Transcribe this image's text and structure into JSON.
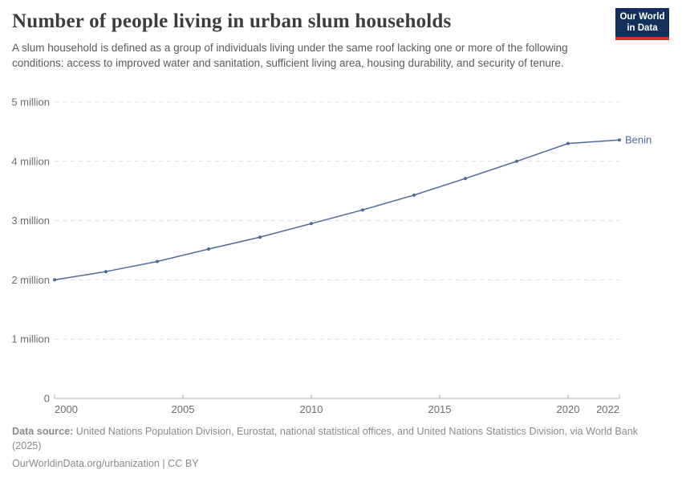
{
  "header": {
    "title": "Number of people living in urban slum households",
    "subtitle": "A slum household is defined as a group of individuals living under the same roof lacking one or more of the following conditions: access to improved water and sanitation, sufficient living area, housing durability, and security of tenure.",
    "logo": {
      "line1": "Our World",
      "line2": "in Data",
      "bg_color": "#12305a",
      "accent_color": "#d8352a"
    }
  },
  "chart_data": {
    "type": "line",
    "title": "Number of people living in urban slum households",
    "unit": "people (millions)",
    "xlim": [
      2000,
      2022
    ],
    "ylim": [
      0,
      5
    ],
    "grid": true,
    "x_ticks": [
      2000,
      2005,
      2010,
      2015,
      2020,
      2022
    ],
    "y_ticks": [
      {
        "value": 0,
        "label": "0"
      },
      {
        "value": 1,
        "label": "1 million"
      },
      {
        "value": 2,
        "label": "2 million"
      },
      {
        "value": 3,
        "label": "3 million"
      },
      {
        "value": 4,
        "label": "4 million"
      },
      {
        "value": 5,
        "label": "5 million"
      }
    ],
    "series": [
      {
        "name": "Benin",
        "color": "#4C6A9C",
        "x": [
          2000,
          2002,
          2004,
          2006,
          2008,
          2010,
          2012,
          2014,
          2016,
          2018,
          2020,
          2022
        ],
        "values": [
          2.0,
          2.14,
          2.31,
          2.52,
          2.72,
          2.95,
          3.18,
          3.43,
          3.71,
          4.0,
          4.3,
          4.36
        ]
      }
    ],
    "legend_position": "end-of-line"
  },
  "footer": {
    "source_label": "Data source:",
    "source_text": "United Nations Population Division, Eurostat, national statistical offices, and United Nations Statistics Division, via World Bank",
    "source_year": "(2025)",
    "note": "OurWorldinData.org/urbanization | CC BY"
  }
}
